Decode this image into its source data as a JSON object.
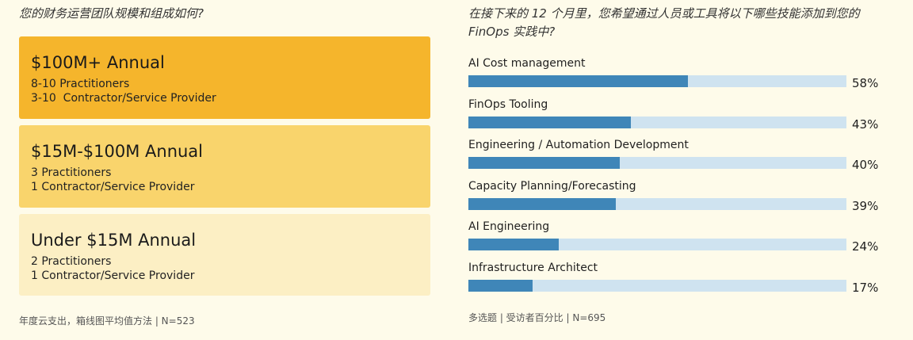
{
  "left": {
    "question": "您的财务运营团队规模和组成如何?",
    "tiers": [
      {
        "title": "$100M+ Annual",
        "line1": "8-10 Practitioners",
        "line2": "3-10  Contractor/Service Provider",
        "color": "#f5b52c"
      },
      {
        "title": "$15M-$100M Annual",
        "line1": "3 Practitioners",
        "line2": "1 Contractor/Service Provider",
        "color": "#f9d46c"
      },
      {
        "title": "Under $15M Annual",
        "line1": "2 Practitioners",
        "line2": "1 Contractor/Service Provider",
        "color": "#fcefc4"
      }
    ],
    "footnote": "年度云支出，箱线图平均值方法 | N=523"
  },
  "right": {
    "question": "在接下来的 12 个月里，您希望通过人员或工具将以下哪些技能添加到您的 FinOps 实践中?",
    "footnote": "多选题 | 受访者百分比 | N=695",
    "fill_color": "#3f86b8",
    "track_color": "#cfe3f0"
  },
  "chart_data": {
    "type": "bar",
    "orientation": "horizontal",
    "title": "在接下来的 12 个月里，您希望通过人员或工具将以下哪些技能添加到您的 FinOps 实践中?",
    "categories": [
      "AI Cost management",
      "FinOps Tooling",
      "Engineering / Automation Development",
      "Capacity Planning/Forecasting",
      "AI Engineering",
      "Infrastructure Architect"
    ],
    "values": [
      58,
      43,
      40,
      39,
      24,
      17
    ],
    "value_labels": [
      "58%",
      "43%",
      "40%",
      "39%",
      "24%",
      "17%"
    ],
    "xlim": [
      0,
      100
    ],
    "grid": false
  }
}
